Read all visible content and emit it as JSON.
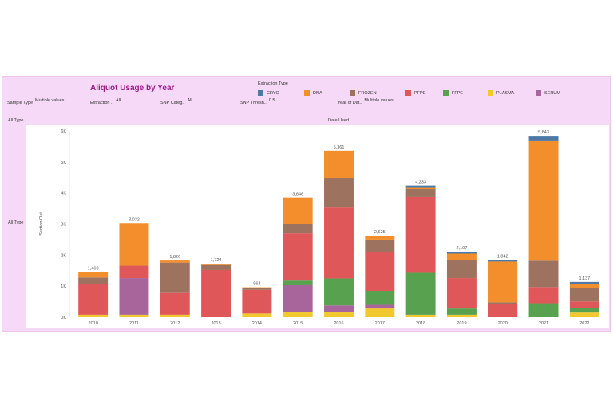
{
  "dashboard": {
    "title": "Aliquot Usage by Year",
    "legend_title": "Extraction Type",
    "filters": [
      {
        "label": "Sample Type",
        "value": "Multiple values"
      },
      {
        "label": "Extraction ..",
        "value": "All"
      },
      {
        "label": "SNP Categ..",
        "value": "All"
      },
      {
        "label": "SNP Thresh..",
        "value": "0.5"
      },
      {
        "label": "Year of Dat..",
        "value": "Multiple values"
      }
    ],
    "row_header": "All Type",
    "column_header": "Date Used",
    "row_label": "All Type"
  },
  "chart_data": {
    "type": "bar",
    "stacked": true,
    "ylabel": "Section Out",
    "ylim": [
      0,
      6000
    ],
    "yticks": [
      "0K",
      "1K",
      "2K",
      "3K",
      "4K",
      "5K",
      "6K"
    ],
    "categories": [
      "2010",
      "2011",
      "2012",
      "2013",
      "2014",
      "2015",
      "2016",
      "2017",
      "2018",
      "2019",
      "2020",
      "2021",
      "2022"
    ],
    "totals": [
      1460,
      3032,
      1826,
      1724,
      963,
      3846,
      5361,
      2625,
      4233,
      2107,
      1842,
      5843,
      1137
    ],
    "series": [
      {
        "name": "PLASMA",
        "color": "#f2c82f",
        "values": [
          80,
          80,
          80,
          0,
          120,
          180,
          180,
          280,
          80,
          80,
          0,
          0,
          150
        ]
      },
      {
        "name": "SERUM",
        "color": "#a8659c",
        "values": [
          0,
          1180,
          0,
          0,
          0,
          850,
          200,
          120,
          0,
          0,
          0,
          0,
          0
        ]
      },
      {
        "name": "FFPE",
        "color": "#58a14e",
        "values": [
          0,
          0,
          0,
          0,
          0,
          150,
          870,
          450,
          1350,
          200,
          0,
          450,
          150
        ]
      },
      {
        "name": "PFPE",
        "color": "#e05759",
        "values": [
          980,
          400,
          700,
          1520,
          760,
          1520,
          2300,
          1250,
          2460,
          980,
          430,
          520,
          210
        ]
      },
      {
        "name": "FROZEN",
        "color": "#9d7360",
        "values": [
          220,
          0,
          980,
          160,
          60,
          310,
          930,
          400,
          230,
          570,
          50,
          850,
          430
        ]
      },
      {
        "name": "DNA",
        "color": "#f28e2b",
        "values": [
          180,
          1372,
          66,
          44,
          23,
          836,
          881,
          125,
          63,
          217,
          1312,
          3873,
          137
        ]
      },
      {
        "name": "CRYO",
        "color": "#4e79a7",
        "values": [
          0,
          0,
          0,
          0,
          0,
          0,
          0,
          0,
          50,
          60,
          50,
          150,
          60
        ]
      }
    ],
    "legend_order": [
      "CRYO",
      "DNA",
      "FROZEN",
      "PFPE",
      "FFPE",
      "PLASMA",
      "SERUM"
    ],
    "legend_position": "top",
    "grid": false
  }
}
